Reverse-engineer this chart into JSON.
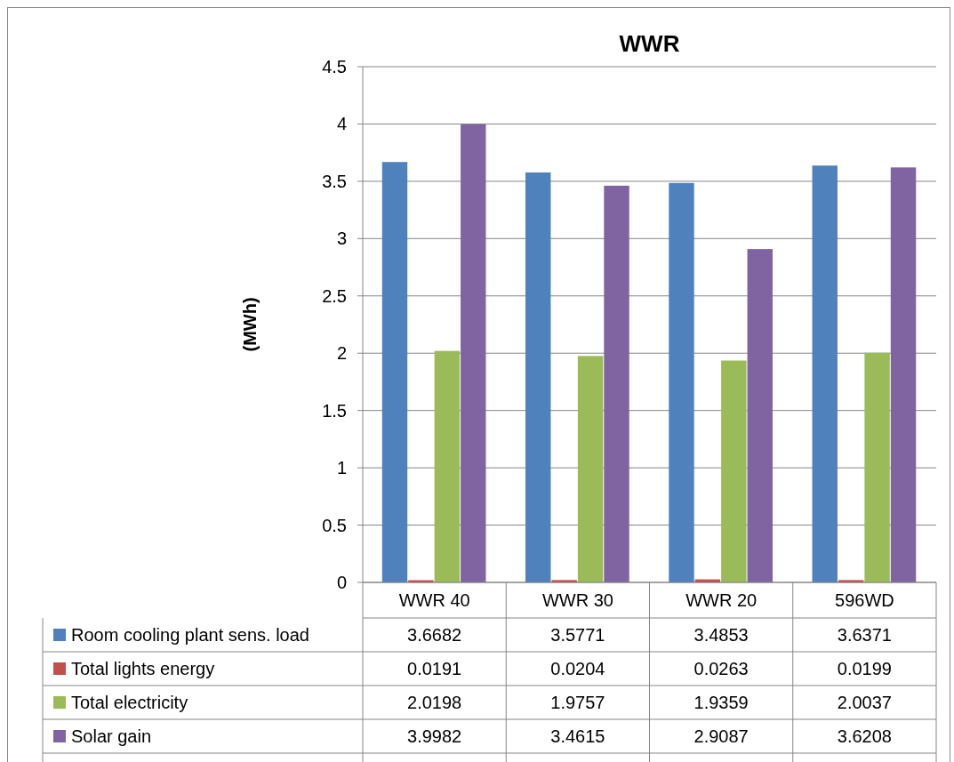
{
  "chart_data": {
    "type": "bar",
    "title": "WWR",
    "ylabel": "(MWh)",
    "categories": [
      "WWR 40",
      "WWR 30",
      "WWR 20",
      "596WD"
    ],
    "series": [
      {
        "name": "Room cooling plant sens. load",
        "color": "#4f81bd",
        "values": [
          3.6682,
          3.5771,
          3.4853,
          3.6371
        ]
      },
      {
        "name": "Total lights energy",
        "color": "#c0504d",
        "values": [
          0.0191,
          0.0204,
          0.0263,
          0.0199
        ]
      },
      {
        "name": "Total electricity",
        "color": "#9bbb59",
        "values": [
          2.0198,
          1.9757,
          1.9359,
          2.0037
        ]
      },
      {
        "name": "Solar gain",
        "color": "#8064a2",
        "values": [
          3.9982,
          3.4615,
          2.9087,
          3.6208
        ]
      }
    ],
    "ylim": [
      0,
      4.5
    ],
    "yticks": [
      0,
      0.5,
      1,
      1.5,
      2,
      2.5,
      3,
      3.5,
      4,
      4.5
    ],
    "grid": "y",
    "legend": "bottom",
    "data_labels": true
  }
}
